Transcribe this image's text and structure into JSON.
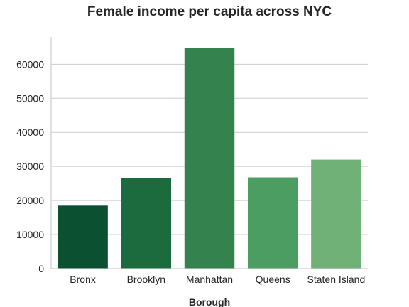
{
  "chart_data": {
    "type": "bar",
    "title": "Female income per capita across NYC",
    "xlabel": "Borough",
    "ylabel": "",
    "categories": [
      "Bronx",
      "Brooklyn",
      "Manhattan",
      "Queens",
      "Staten Island"
    ],
    "values": [
      18500,
      26500,
      64700,
      26800,
      32000
    ],
    "colors": [
      "#0b5030",
      "#1b6b3f",
      "#34834f",
      "#4c9d62",
      "#6fb176"
    ],
    "ylim": [
      0,
      68000
    ],
    "yticks": [
      0,
      10000,
      20000,
      30000,
      40000,
      50000,
      60000
    ],
    "ytick_labels": [
      "0",
      "10000",
      "20000",
      "30000",
      "40000",
      "50000",
      "60000"
    ],
    "grid": "horizontal",
    "legend": "none"
  }
}
